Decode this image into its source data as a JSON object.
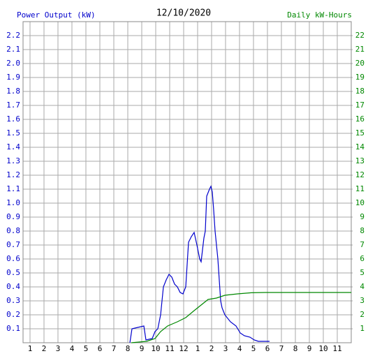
{
  "chart_data": {
    "type": "line",
    "title": "12/10/2020",
    "y_label": "Power Output (kW)",
    "y2_label": "Daily kW-Hours",
    "xlim": [
      0.5,
      24
    ],
    "xticks": [
      1,
      2,
      3,
      4,
      5,
      6,
      7,
      8,
      9,
      10,
      11,
      12,
      {
        "value": 13,
        "label": "1"
      },
      {
        "value": 14,
        "label": "2"
      },
      {
        "value": 15,
        "label": "3"
      },
      {
        "value": 16,
        "label": "4"
      },
      {
        "value": 17,
        "label": "5"
      },
      {
        "value": 18,
        "label": "6"
      },
      {
        "value": 19,
        "label": "7"
      },
      {
        "value": 20,
        "label": "8"
      },
      {
        "value": 21,
        "label": "9"
      },
      {
        "value": 22,
        "label": "10"
      },
      {
        "value": 23,
        "label": "11"
      }
    ],
    "ylim": [
      0,
      2.3
    ],
    "yticks": [
      0.1,
      0.2,
      0.3,
      0.4,
      0.5,
      0.6,
      0.7,
      0.8,
      0.9,
      {
        "value": 1,
        "label": "1.0"
      },
      1.1,
      1.2,
      1.3,
      1.4,
      1.5,
      1.6,
      1.7,
      1.8,
      1.9,
      {
        "value": 2,
        "label": "2.0"
      },
      2.1,
      2.2
    ],
    "y2lim": [
      0,
      23
    ],
    "y2ticks": [
      1,
      2,
      3,
      4,
      5,
      6,
      7,
      8,
      9,
      10,
      11,
      12,
      13,
      14,
      15,
      16,
      17,
      18,
      19,
      20,
      21,
      22
    ],
    "grid": true,
    "series": [
      {
        "name": "Power Output (kW)",
        "color": "#0000cc",
        "x": [
          8.15,
          8.3,
          9.15,
          9.3,
          9.75,
          9.95,
          10.15,
          10.35,
          10.55,
          10.75,
          10.95,
          11.15,
          11.35,
          11.55,
          11.75,
          11.95,
          12.15,
          12.35,
          12.55,
          12.75,
          12.95,
          13.15,
          13.25,
          13.45,
          13.55,
          13.65,
          13.85,
          13.95,
          14.05,
          14.15,
          14.25,
          14.45,
          14.65,
          14.75,
          14.95,
          15.35,
          15.75,
          16.05,
          16.35,
          16.75,
          17.05,
          17.35,
          18.15
        ],
        "values": [
          0,
          0.1,
          0.12,
          0.02,
          0.03,
          0.08,
          0.1,
          0.2,
          0.4,
          0.45,
          0.49,
          0.47,
          0.42,
          0.4,
          0.36,
          0.35,
          0.4,
          0.72,
          0.76,
          0.79,
          0.7,
          0.6,
          0.58,
          0.75,
          0.8,
          1.05,
          1.1,
          1.12,
          1.08,
          0.95,
          0.8,
          0.6,
          0.3,
          0.25,
          0.2,
          0.15,
          0.12,
          0.07,
          0.05,
          0.04,
          0.02,
          0.01,
          0.01
        ]
      },
      {
        "name": "Daily kW-Hours",
        "color": "#008800",
        "axis": "y2",
        "x": [
          8.25,
          9.35,
          9.95,
          10.35,
          10.85,
          11.55,
          12.15,
          12.75,
          13.25,
          13.75,
          14.35,
          14.95,
          15.85,
          16.85,
          17.85,
          24
        ],
        "values": [
          0,
          0.1,
          0.3,
          0.8,
          1.2,
          1.5,
          1.8,
          2.3,
          2.7,
          3.1,
          3.2,
          3.4,
          3.5,
          3.58,
          3.6,
          3.6
        ]
      }
    ]
  }
}
